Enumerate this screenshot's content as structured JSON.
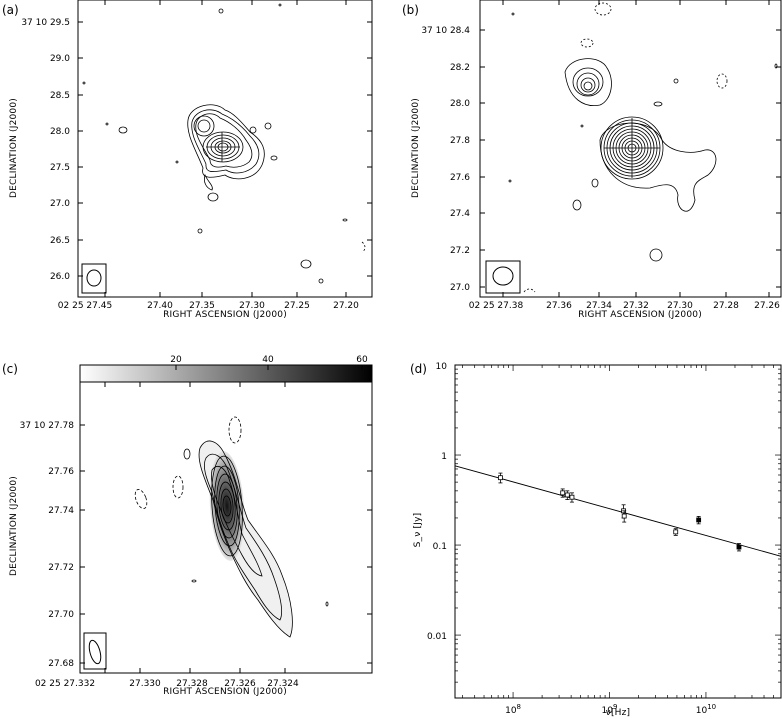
{
  "panels": {
    "a": {
      "label": "(a)",
      "xlabel": "RIGHT ASCENSION (J2000)",
      "ylabel": "DECLINATION (J2000)",
      "x_ticks": [
        "02 25 27.45",
        "27.40",
        "27.35",
        "27.30",
        "27.25",
        "27.20"
      ],
      "y_ticks": [
        "37 10 29.5",
        "29.0",
        "28.5",
        "28.0",
        "27.5",
        "27.0",
        "26.5",
        "26.0"
      ]
    },
    "b": {
      "label": "(b)",
      "xlabel": "RIGHT ASCENSION (J2000)",
      "ylabel": "DECLINATION (J2000)",
      "x_ticks": [
        "02 25 27.38",
        "27.36",
        "27.34",
        "27.32",
        "27.30",
        "27.28",
        "27.26"
      ],
      "y_ticks": [
        "37 10 28.4",
        "28.2",
        "28.0",
        "27.8",
        "27.6",
        "27.4",
        "27.2",
        "27.0"
      ]
    },
    "c": {
      "label": "(c)",
      "xlabel": "RIGHT ASCENSION (J2000)",
      "ylabel": "DECLINATION (J2000)",
      "x_ticks": [
        "02 25 27.332",
        "27.330",
        "27.328",
        "27.326",
        "27.324"
      ],
      "y_ticks": [
        "37 10 27.78",
        "27.76",
        "27.74",
        "27.72",
        "27.70",
        "27.68"
      ],
      "colorbar_ticks": [
        "20",
        "40",
        "60"
      ]
    },
    "d": {
      "label": "(d)",
      "xlabel": "ν[Hz]",
      "ylabel": "S_ν [Jy]",
      "x_ticks": [
        "10^8",
        "10^9",
        "10^10"
      ],
      "y_ticks": [
        "10",
        "1",
        "0.1",
        "0.01"
      ]
    }
  },
  "chart_data": [
    {
      "type": "contour",
      "panel": "a",
      "xlabel": "RIGHT ASCENSION (J2000)",
      "ylabel": "DECLINATION (J2000)",
      "xlim": [
        "02 25 27.475",
        "02 25 27.150"
      ],
      "ylim": [
        "37 10 25.8",
        "37 10 29.8"
      ],
      "peak": {
        "ra": "02 25 27.325",
        "dec": "37 10 27.73"
      }
    },
    {
      "type": "contour",
      "panel": "b",
      "xlabel": "RIGHT ASCENSION (J2000)",
      "ylabel": "DECLINATION (J2000)",
      "xlim": [
        "02 25 27.388",
        "02 25 27.258"
      ],
      "ylim": [
        "37 10 26.96",
        "37 10 28.55"
      ],
      "peak": {
        "ra": "02 25 27.326",
        "dec": "37 10 27.74"
      }
    },
    {
      "type": "contour",
      "panel": "c",
      "xlabel": "RIGHT ASCENSION (J2000)",
      "ylabel": "DECLINATION (J2000)",
      "colorbar": {
        "ticks": [
          20,
          40,
          60
        ],
        "range": [
          0,
          62
        ]
      },
      "xlim": [
        "02 25 27.3322",
        "02 25 27.3225"
      ],
      "ylim": [
        "37 10 27.675",
        "37 10 27.792"
      ],
      "peak": {
        "ra": "02 25 27.3271",
        "dec": "37 10 27.745"
      }
    },
    {
      "type": "scatter",
      "panel": "d",
      "xscale": "log",
      "yscale": "log",
      "xlabel": "ν[Hz]",
      "ylabel": "S_ν [Jy]",
      "xlim": [
        25000000.0,
        60000000000.0
      ],
      "ylim": [
        0.002,
        10
      ],
      "series": [
        {
          "points": [
            {
              "x": 74000000.0,
              "y": 0.56,
              "err": 0.07,
              "filled": false
            },
            {
              "x": 327000000.0,
              "y": 0.38,
              "err": 0.04,
              "filled": false
            },
            {
              "x": 365000000.0,
              "y": 0.36,
              "err": 0.04,
              "filled": false
            },
            {
              "x": 408000000.0,
              "y": 0.34,
              "err": 0.04,
              "filled": false
            },
            {
              "x": 1400000000.0,
              "y": 0.24,
              "err": 0.04,
              "filled": false
            },
            {
              "x": 1420000000.0,
              "y": 0.21,
              "err": 0.03,
              "filled": false
            },
            {
              "x": 4860000000.0,
              "y": 0.14,
              "err": 0.012,
              "filled": false
            },
            {
              "x": 8400000000.0,
              "y": 0.19,
              "err": 0.018,
              "filled": true
            },
            {
              "x": 22000000000.0,
              "y": 0.095,
              "err": 0.009,
              "filled": true
            }
          ]
        }
      ],
      "fit_line": {
        "x": [
          25000000.0,
          60000000000.0
        ],
        "y": [
          0.76,
          0.075
        ]
      }
    }
  ]
}
